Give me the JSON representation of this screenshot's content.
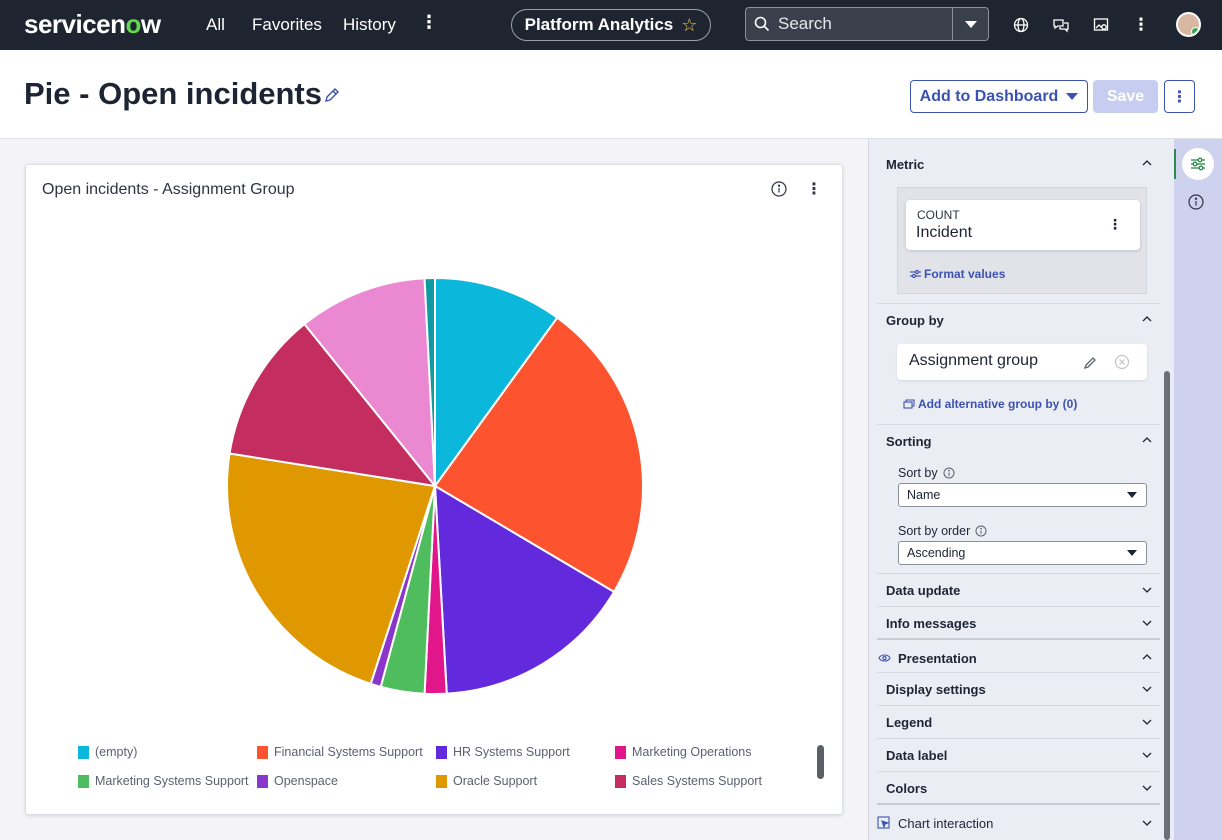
{
  "topnav": {
    "logo": "servicenow",
    "links": [
      "All",
      "Favorites",
      "History"
    ],
    "more_icon": "more-vertical-icon",
    "app_pill": "Platform Analytics",
    "search_placeholder": "Search",
    "icons": [
      "globe-icon",
      "chat-icon",
      "image-search-icon",
      "more-vertical-icon"
    ]
  },
  "header": {
    "title": "Pie - Open incidents",
    "add_to_dashboard": "Add to Dashboard",
    "save": "Save"
  },
  "card": {
    "title": "Open incidents - Assignment Group"
  },
  "chart_data": {
    "type": "pie",
    "title": "Open incidents - Assignment Group",
    "legend_position": "bottom",
    "slices": [
      {
        "label": "(empty)",
        "value": 10.0,
        "color": "#0bb8db"
      },
      {
        "label": "Financial Systems Support",
        "value": 23.5,
        "color": "#fd532e"
      },
      {
        "label": "HR Systems Support",
        "value": 15.6,
        "color": "#632add"
      },
      {
        "label": "Marketing Operations",
        "value": 1.7,
        "color": "#e0168a"
      },
      {
        "label": "Marketing Systems Support",
        "value": 3.4,
        "color": "#4fbd5d"
      },
      {
        "label": "Openspace",
        "value": 0.8,
        "color": "#8a36cc"
      },
      {
        "label": "Oracle Support",
        "value": 22.5,
        "color": "#e09800"
      },
      {
        "label": "Sales Systems Support",
        "value": 11.7,
        "color": "#c32d5f"
      },
      {
        "label": "",
        "value": 10.0,
        "color": "#ea88d1"
      },
      {
        "label": "",
        "value": 0.8,
        "color": "#0e9aa0"
      }
    ]
  },
  "panel": {
    "metric": {
      "header": "Metric",
      "aggregate": "COUNT",
      "table": "Incident",
      "format_link": "Format values"
    },
    "group_by": {
      "header": "Group by",
      "value": "Assignment group",
      "alt_link": "Add alternative group by (0)"
    },
    "sorting": {
      "header": "Sorting",
      "sort_by_label": "Sort by",
      "sort_by_value": "Name",
      "order_label": "Sort by order",
      "order_value": "Ascending"
    },
    "sections": {
      "data_update": "Data update",
      "info_messages": "Info messages",
      "presentation": "Presentation",
      "display_settings": "Display settings",
      "legend": "Legend",
      "data_label": "Data label",
      "colors": "Colors",
      "chart_interaction": "Chart interaction"
    }
  },
  "colors": {
    "nav_bg": "#1f2530",
    "accent": "#3c52b2",
    "logo_green": "#62d84e"
  }
}
